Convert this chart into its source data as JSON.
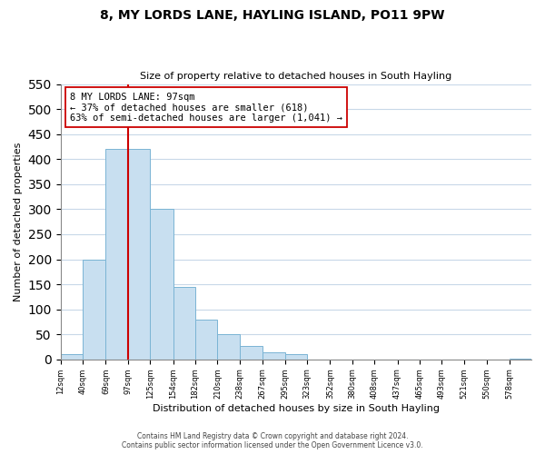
{
  "title": "8, MY LORDS LANE, HAYLING ISLAND, PO11 9PW",
  "subtitle": "Size of property relative to detached houses in South Hayling",
  "xlabel": "Distribution of detached houses by size in South Hayling",
  "ylabel": "Number of detached properties",
  "footer_line1": "Contains HM Land Registry data © Crown copyright and database right 2024.",
  "footer_line2": "Contains public sector information licensed under the Open Government Licence v3.0.",
  "bar_edges": [
    12,
    40,
    69,
    97,
    125,
    154,
    182,
    210,
    238,
    267,
    295,
    323,
    352,
    380,
    408,
    437,
    465,
    493,
    521,
    550,
    578
  ],
  "bar_heights": [
    10,
    200,
    420,
    420,
    300,
    145,
    80,
    50,
    27,
    14,
    10,
    0,
    0,
    0,
    0,
    0,
    0,
    0,
    0,
    0,
    2
  ],
  "bar_color": "#c8dff0",
  "bar_edgecolor": "#7ab4d4",
  "property_line_x": 97,
  "property_line_color": "#cc0000",
  "annotation_line1": "8 MY LORDS LANE: 97sqm",
  "annotation_line2": "← 37% of detached houses are smaller (618)",
  "annotation_line3": "63% of semi-detached houses are larger (1,041) →",
  "annotation_box_edgecolor": "#cc0000",
  "ylim": [
    0,
    550
  ],
  "tick_labels": [
    "12sqm",
    "40sqm",
    "69sqm",
    "97sqm",
    "125sqm",
    "154sqm",
    "182sqm",
    "210sqm",
    "238sqm",
    "267sqm",
    "295sqm",
    "323sqm",
    "352sqm",
    "380sqm",
    "408sqm",
    "437sqm",
    "465sqm",
    "493sqm",
    "521sqm",
    "550sqm",
    "578sqm"
  ],
  "yticks": [
    0,
    50,
    100,
    150,
    200,
    250,
    300,
    350,
    400,
    450,
    500,
    550
  ],
  "background_color": "#ffffff",
  "grid_color": "#c8d8e8"
}
